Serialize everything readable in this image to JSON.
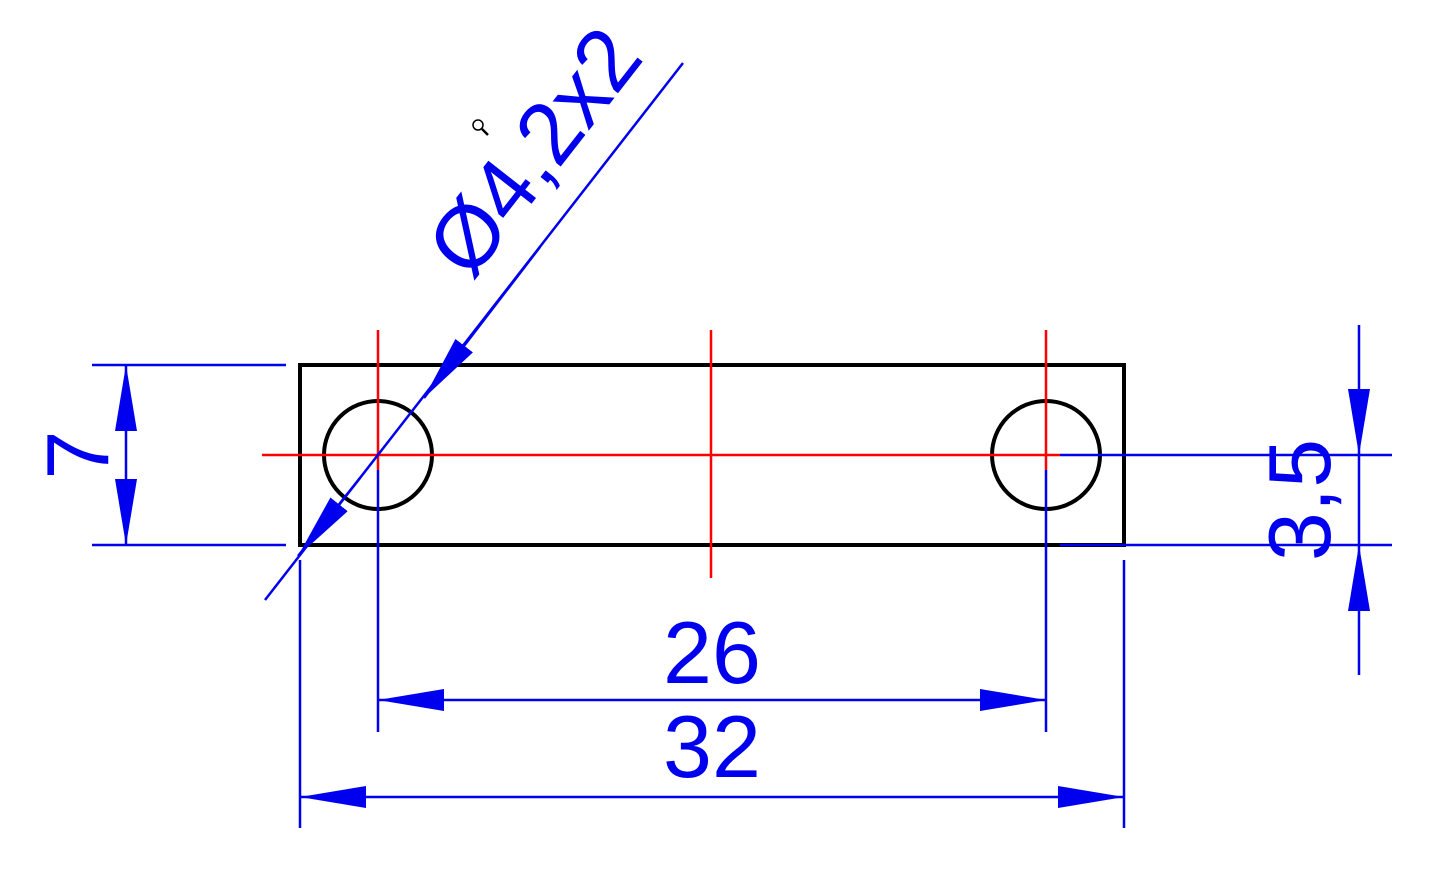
{
  "drawing": {
    "colors": {
      "outline": "#000000",
      "centerline": "#ff0000",
      "dimension": "#0000ee"
    },
    "dimensions": {
      "hole_callout": "Ø4,2x2",
      "total_height": "7",
      "hole_edge_offset": "3,5",
      "hole_spacing": "26",
      "total_length": "32"
    },
    "cursor_icon": "magnifier-cursor-icon"
  }
}
